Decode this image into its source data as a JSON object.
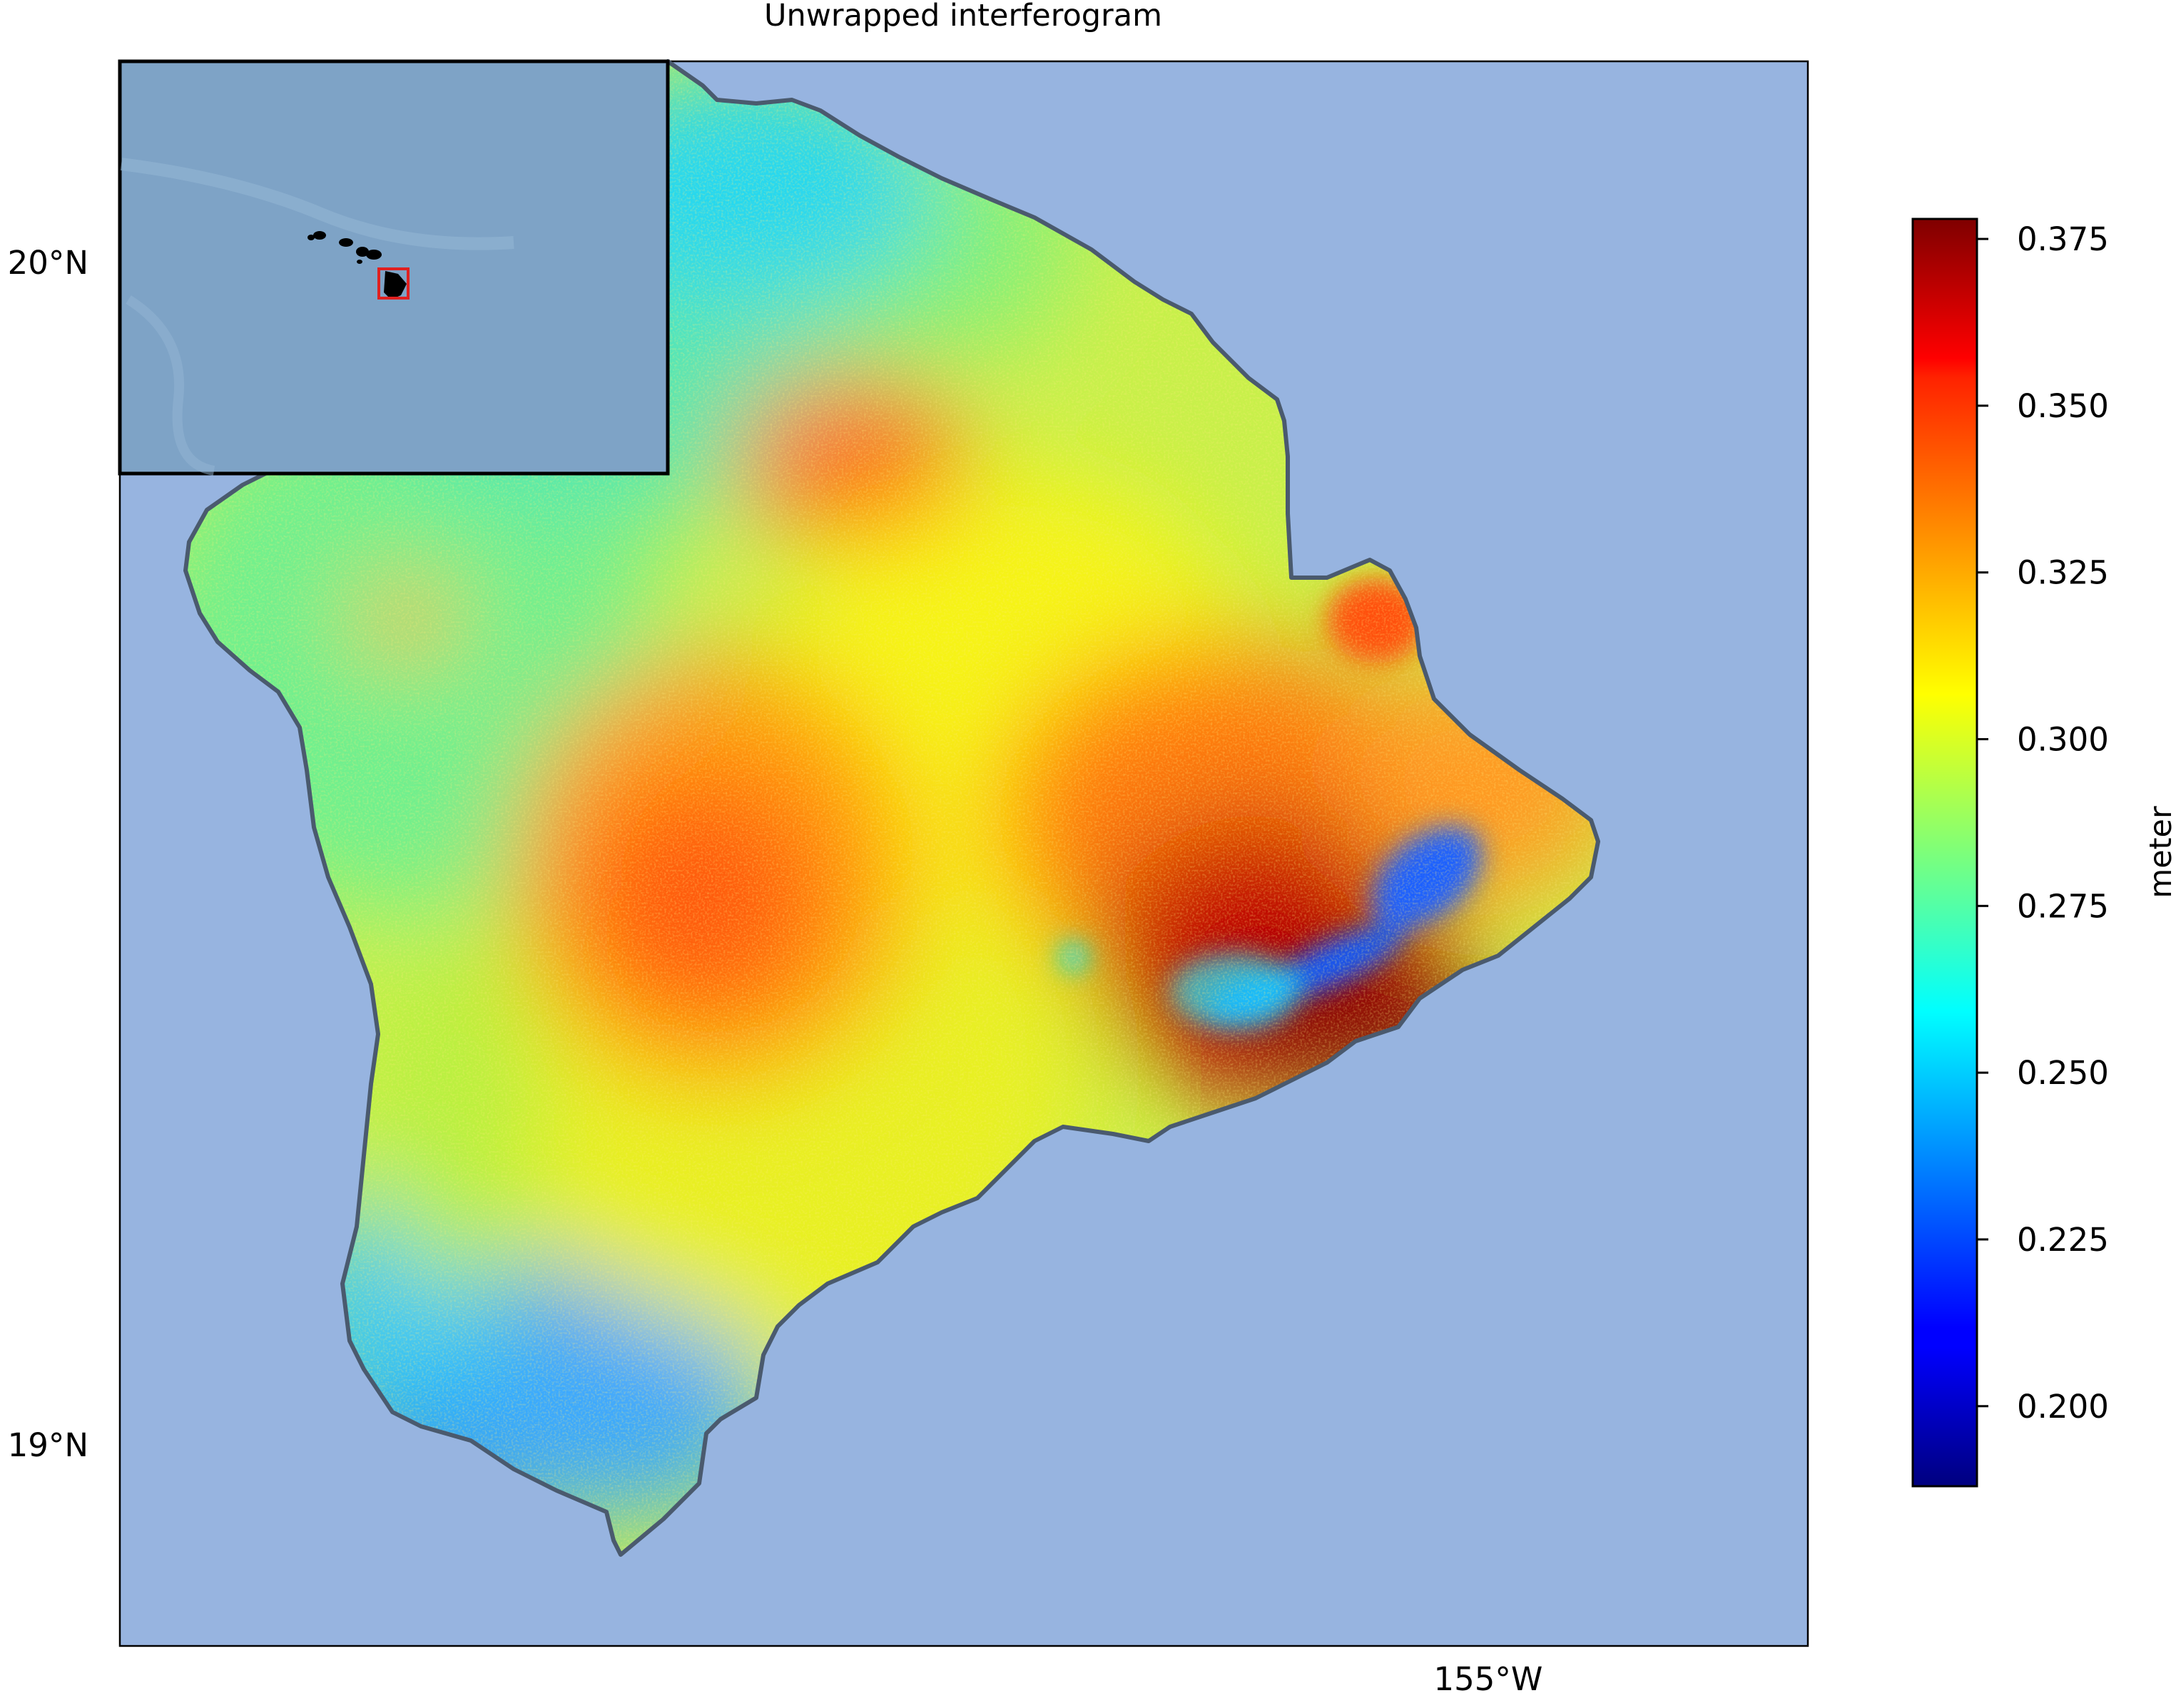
{
  "title": "Unwrapped interferogram",
  "axes": {
    "lat_ticks": [
      {
        "value": 20.0,
        "label": "20°N"
      },
      {
        "value": 19.0,
        "label": "19°N"
      }
    ],
    "lon_ticks": [
      {
        "value": -155.0,
        "label": "155°W"
      }
    ],
    "lat_range": [
      18.83,
      20.17
    ],
    "lon_range": [
      -156.07,
      -154.75
    ]
  },
  "colorbar": {
    "label": "meter",
    "colormap": "jet",
    "range": [
      0.188,
      0.378
    ],
    "ticks": [
      {
        "value": 0.375,
        "label": "0.375"
      },
      {
        "value": 0.35,
        "label": "0.350"
      },
      {
        "value": 0.325,
        "label": "0.325"
      },
      {
        "value": 0.3,
        "label": "0.300"
      },
      {
        "value": 0.275,
        "label": "0.275"
      },
      {
        "value": 0.25,
        "label": "0.250"
      },
      {
        "value": 0.225,
        "label": "0.225"
      },
      {
        "value": 0.2,
        "label": "0.200"
      }
    ]
  },
  "colors": {
    "ocean": "#97b4e0",
    "coastline": "#4a5a6e",
    "inset_ocean": "#7ea3c6",
    "inset_box": "#e02020",
    "inset_land": "#000000"
  },
  "inset": {
    "description_icon": "locator-map-icon",
    "highlight": "red-box-icon"
  }
}
